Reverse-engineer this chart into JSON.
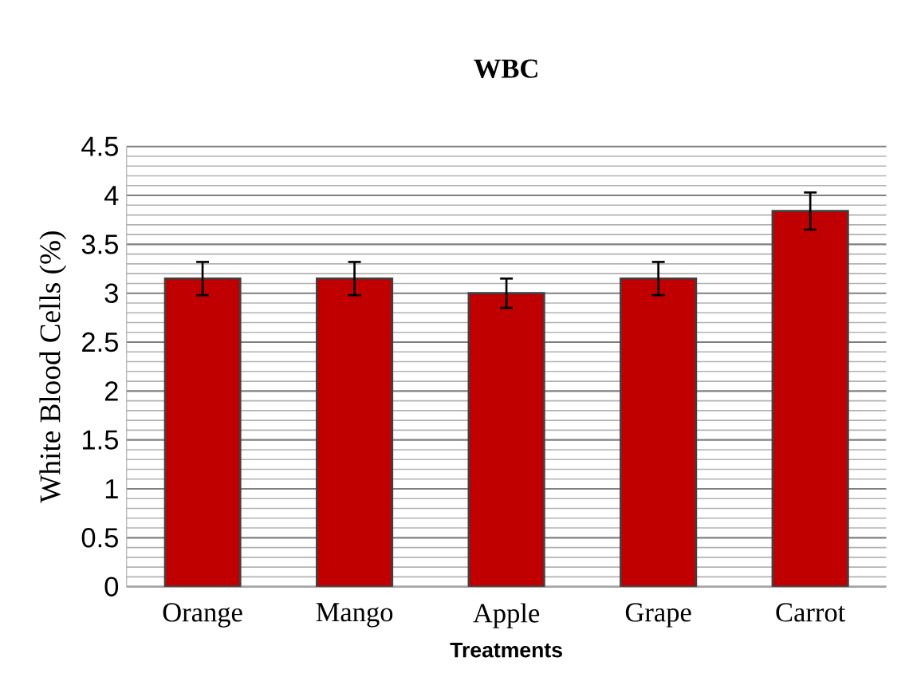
{
  "chart_data": {
    "type": "bar",
    "title": "WBC",
    "xlabel": "Treatments",
    "ylabel": "White Blood Cells (%)",
    "categories": [
      "Orange",
      "Mango",
      "Apple",
      "Grape",
      "Carrot"
    ],
    "values": [
      3.15,
      3.15,
      3.0,
      3.15,
      3.84
    ],
    "errors": [
      0.17,
      0.17,
      0.15,
      0.17,
      0.19
    ],
    "color": "#c00000",
    "ylim": [
      0,
      4.5
    ],
    "yticks": [
      0,
      0.5,
      1,
      1.5,
      2,
      2.5,
      3,
      3.5,
      4,
      4.5
    ],
    "grid": "y"
  }
}
